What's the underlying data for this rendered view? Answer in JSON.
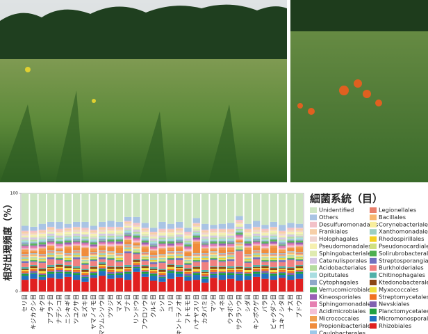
{
  "chart_data": {
    "type": "bar",
    "stacked": true,
    "y_label": "相対出現頻度（%）",
    "legend_title": "細菌系統（目）",
    "ylim": [
      0,
      100
    ],
    "yticks": [
      0,
      100
    ],
    "categories": [
      "セリ目",
      "キジカクシ目",
      "キク目",
      "アブラナ目",
      "ナデシコ目",
      "ニシキギ目",
      "ツユクサ目",
      "ミズキ目",
      "ヤマノイモ目",
      "マツムシソウ目",
      "ツツジ目",
      "マメ目",
      "ブナ目",
      "リンドウ目",
      "フウロソウ目",
      "クルミ目",
      "シソ目",
      "ユリ目",
      "キントラノオ目",
      "フトモモ目",
      "ハナヤスリ目",
      "カタバミ目",
      "マツ目",
      "イネ目",
      "ウラボシ目",
      "サクラソウ目",
      "シダ目",
      "キンポウゲ目",
      "バラ目",
      "ビャクダン目",
      "ユキノシタ目",
      "ナス目",
      "ブドウ目"
    ],
    "series": [
      {
        "name": "Unidentified",
        "color": "#cfe6c4",
        "values": [
          33,
          34,
          31,
          29,
          29,
          31,
          29,
          29,
          33,
          29,
          28,
          29,
          24,
          24,
          30,
          35,
          29,
          31,
          29,
          35,
          25,
          31,
          32,
          31,
          30,
          23,
          31,
          28,
          32,
          29,
          32,
          30,
          31
        ]
      },
      {
        "name": "Others",
        "color": "#a9c4e4",
        "values": [
          5,
          4,
          6,
          5,
          7,
          4,
          5,
          6,
          4,
          5,
          6,
          5,
          4,
          6,
          5,
          4,
          7,
          5,
          6,
          4,
          5,
          6,
          4,
          5,
          6,
          4,
          5,
          6,
          4,
          5,
          6,
          5,
          4
        ]
      },
      {
        "name": "Desulfuromonadales",
        "color": "#f3c1c8",
        "values": [
          1,
          2,
          1,
          1,
          2,
          1,
          1,
          2,
          1,
          1,
          2,
          1,
          1,
          2,
          1,
          1,
          2,
          1,
          1,
          2,
          1,
          1,
          2,
          1,
          1,
          2,
          1,
          1,
          2,
          1,
          1,
          2,
          1
        ]
      },
      {
        "name": "Frankiales",
        "color": "#f6cfa8",
        "values": [
          2,
          1,
          2,
          2,
          1,
          2,
          2,
          1,
          2,
          2,
          1,
          2,
          2,
          1,
          2,
          2,
          1,
          2,
          2,
          1,
          2,
          2,
          1,
          2,
          2,
          1,
          2,
          2,
          1,
          2,
          2,
          1,
          2
        ]
      },
      {
        "name": "Holophagales",
        "color": "#f0d4d0",
        "values": [
          2,
          1,
          1,
          2,
          1,
          1,
          2,
          1,
          1,
          2,
          1,
          1,
          2,
          1,
          1,
          2,
          1,
          1,
          2,
          1,
          1,
          2,
          1,
          1,
          2,
          1,
          1,
          2,
          1,
          1,
          2,
          1,
          1
        ]
      },
      {
        "name": "Pseudomonadales",
        "color": "#f6f0b0",
        "values": [
          1,
          2,
          2,
          1,
          2,
          2,
          1,
          2,
          2,
          1,
          2,
          2,
          1,
          2,
          2,
          1,
          2,
          2,
          1,
          2,
          2,
          1,
          2,
          2,
          1,
          2,
          2,
          1,
          2,
          2,
          1,
          2,
          2
        ]
      },
      {
        "name": "Sphingobacteriales",
        "color": "#dfeab0",
        "values": [
          1,
          1,
          2,
          1,
          1,
          2,
          1,
          1,
          2,
          1,
          1,
          2,
          1,
          1,
          2,
          1,
          1,
          2,
          1,
          1,
          2,
          1,
          1,
          2,
          1,
          1,
          2,
          1,
          1,
          2,
          1,
          1,
          2
        ]
      },
      {
        "name": "Catenulisporales",
        "color": "#d5c6e4",
        "values": [
          2,
          2,
          1,
          2,
          2,
          1,
          2,
          2,
          1,
          2,
          2,
          1,
          2,
          2,
          1,
          2,
          2,
          1,
          2,
          2,
          1,
          2,
          2,
          1,
          2,
          2,
          1,
          2,
          2,
          1,
          2,
          2,
          1
        ]
      },
      {
        "name": "Acidobacteriales",
        "color": "#b5dca0",
        "values": [
          1,
          2,
          1,
          1,
          2,
          1,
          1,
          2,
          1,
          1,
          2,
          1,
          1,
          2,
          1,
          1,
          2,
          1,
          1,
          2,
          1,
          1,
          2,
          1,
          1,
          2,
          1,
          1,
          2,
          1,
          1,
          2,
          1
        ]
      },
      {
        "name": "Opitutales",
        "color": "#a8dde0",
        "values": [
          2,
          1,
          2,
          2,
          1,
          2,
          2,
          1,
          2,
          2,
          1,
          2,
          2,
          1,
          2,
          2,
          1,
          2,
          2,
          1,
          2,
          2,
          1,
          2,
          2,
          1,
          2,
          2,
          1,
          2,
          2,
          1,
          2
        ]
      },
      {
        "name": "Cytophagales",
        "color": "#8fa8c8",
        "values": [
          2,
          1,
          1,
          2,
          1,
          1,
          2,
          1,
          1,
          2,
          1,
          1,
          2,
          1,
          1,
          2,
          1,
          1,
          2,
          1,
          1,
          2,
          1,
          1,
          2,
          1,
          1,
          2,
          1,
          1,
          2,
          1,
          1
        ]
      },
      {
        "name": "Verrucomicrobiales",
        "color": "#5cb85c",
        "values": [
          1,
          2,
          2,
          1,
          2,
          2,
          1,
          2,
          2,
          1,
          2,
          2,
          1,
          2,
          2,
          1,
          2,
          2,
          1,
          2,
          2,
          1,
          2,
          2,
          1,
          2,
          2,
          1,
          2,
          2,
          1,
          2,
          2
        ]
      },
      {
        "name": "Kineosporiales",
        "color": "#9b5fb5",
        "values": [
          1,
          1,
          2,
          1,
          1,
          2,
          1,
          1,
          2,
          1,
          1,
          2,
          1,
          1,
          2,
          1,
          1,
          2,
          1,
          1,
          2,
          1,
          1,
          2,
          1,
          1,
          2,
          1,
          1,
          2,
          1,
          1,
          2
        ]
      },
      {
        "name": "Sphingomonadales",
        "color": "#e67fb0",
        "values": [
          2,
          2,
          1,
          2,
          2,
          1,
          2,
          2,
          1,
          2,
          2,
          1,
          2,
          2,
          1,
          2,
          2,
          1,
          2,
          2,
          1,
          2,
          2,
          1,
          2,
          2,
          1,
          2,
          2,
          1,
          2,
          2,
          1
        ]
      },
      {
        "name": "Acidimicrobiales",
        "color": "#f4c0d4",
        "values": [
          1,
          2,
          1,
          1,
          2,
          1,
          1,
          2,
          1,
          1,
          2,
          1,
          1,
          2,
          1,
          1,
          2,
          1,
          1,
          2,
          1,
          1,
          2,
          1,
          1,
          2,
          1,
          1,
          2,
          1,
          1,
          2,
          1
        ]
      },
      {
        "name": "Micrococcales",
        "color": "#f0a050",
        "values": [
          2,
          1,
          2,
          2,
          1,
          2,
          2,
          1,
          2,
          2,
          1,
          2,
          2,
          1,
          2,
          2,
          1,
          2,
          2,
          1,
          2,
          2,
          1,
          2,
          2,
          1,
          2,
          2,
          1,
          2,
          2,
          1,
          2
        ]
      },
      {
        "name": "Propionibacteriales",
        "color": "#f08c3c",
        "values": [
          3,
          2,
          4,
          3,
          2,
          5,
          3,
          8,
          2,
          3,
          4,
          6,
          3,
          2,
          4,
          3,
          5,
          2,
          3,
          4,
          10,
          3,
          2,
          4,
          3,
          2,
          5,
          3,
          4,
          6,
          2,
          3,
          4
        ]
      },
      {
        "name": "Caulobacterales",
        "color": "#9cc8e8",
        "values": [
          1,
          1,
          1,
          1,
          1,
          1,
          1,
          1,
          1,
          1,
          1,
          1,
          1,
          1,
          1,
          1,
          1,
          1,
          1,
          1,
          1,
          1,
          1,
          1,
          1,
          1,
          1,
          1,
          1,
          1,
          1,
          1,
          1
        ]
      },
      {
        "name": "Legionellales",
        "color": "#e8806c",
        "values": [
          1,
          0,
          1,
          1,
          0,
          1,
          1,
          0,
          1,
          1,
          0,
          1,
          1,
          0,
          1,
          1,
          0,
          1,
          1,
          0,
          1,
          1,
          0,
          1,
          1,
          0,
          1,
          1,
          0,
          1,
          1,
          0,
          1
        ]
      },
      {
        "name": "Bacillales",
        "color": "#f8b870",
        "values": [
          1,
          2,
          1,
          1,
          2,
          1,
          1,
          2,
          1,
          1,
          2,
          1,
          1,
          2,
          1,
          1,
          2,
          1,
          1,
          2,
          1,
          1,
          2,
          1,
          1,
          2,
          1,
          1,
          2,
          1,
          1,
          2,
          1
        ]
      },
      {
        "name": "Corynebacteriales",
        "color": "#f8ee9c",
        "values": [
          0,
          1,
          1,
          0,
          1,
          1,
          0,
          1,
          1,
          0,
          1,
          1,
          0,
          1,
          1,
          0,
          1,
          1,
          0,
          1,
          1,
          0,
          1,
          1,
          0,
          1,
          1,
          0,
          1,
          1,
          0,
          1,
          1
        ]
      },
      {
        "name": "Xanthomonadales",
        "color": "#9ccfc0",
        "values": [
          2,
          1,
          1,
          2,
          1,
          1,
          2,
          1,
          1,
          2,
          1,
          1,
          2,
          1,
          1,
          2,
          1,
          1,
          2,
          1,
          1,
          2,
          1,
          1,
          2,
          1,
          1,
          2,
          1,
          1,
          2,
          1,
          1
        ]
      },
      {
        "name": "Rhodospirillales",
        "color": "#f4d020",
        "values": [
          1,
          0,
          1,
          1,
          0,
          1,
          1,
          0,
          1,
          1,
          0,
          1,
          1,
          0,
          1,
          1,
          0,
          1,
          1,
          0,
          1,
          1,
          0,
          1,
          1,
          0,
          1,
          1,
          0,
          1,
          1,
          0,
          1
        ]
      },
      {
        "name": "Pseudonocardiales",
        "color": "#d0e080",
        "values": [
          1,
          2,
          1,
          1,
          2,
          1,
          1,
          2,
          1,
          1,
          2,
          1,
          1,
          2,
          1,
          1,
          2,
          1,
          1,
          2,
          1,
          1,
          2,
          1,
          1,
          2,
          1,
          1,
          2,
          1,
          1,
          2,
          1
        ]
      },
      {
        "name": "Solirubrobacterales",
        "color": "#4caf50",
        "values": [
          0,
          1,
          1,
          0,
          1,
          1,
          0,
          1,
          1,
          0,
          1,
          1,
          0,
          1,
          1,
          0,
          1,
          1,
          0,
          1,
          1,
          0,
          1,
          1,
          0,
          1,
          1,
          0,
          1,
          1,
          0,
          1,
          1
        ]
      },
      {
        "name": "Streptosporangiales",
        "color": "#7070c0",
        "values": [
          2,
          1,
          1,
          2,
          1,
          1,
          2,
          1,
          1,
          2,
          1,
          1,
          2,
          1,
          1,
          2,
          1,
          1,
          2,
          1,
          1,
          2,
          1,
          1,
          2,
          1,
          1,
          2,
          1,
          1,
          2,
          1,
          1
        ]
      },
      {
        "name": "Burkholderiales",
        "color": "#f08080",
        "values": [
          4,
          3,
          5,
          6,
          4,
          3,
          7,
          4,
          5,
          3,
          6,
          4,
          12,
          5,
          4,
          3,
          6,
          4,
          5,
          3,
          4,
          8,
          6,
          4,
          5,
          15,
          4,
          6,
          3,
          5,
          4,
          7,
          4
        ]
      },
      {
        "name": "Chitinophagales",
        "color": "#50b0a8",
        "values": [
          2,
          1,
          1,
          2,
          1,
          1,
          2,
          1,
          1,
          2,
          1,
          1,
          2,
          1,
          1,
          2,
          1,
          1,
          2,
          1,
          1,
          2,
          1,
          1,
          2,
          1,
          1,
          2,
          1,
          1,
          2,
          1,
          1
        ]
      },
      {
        "name": "Ktedonobacterales",
        "color": "#8b4513",
        "values": [
          1,
          2,
          2,
          1,
          2,
          2,
          1,
          2,
          2,
          1,
          2,
          2,
          1,
          2,
          2,
          1,
          2,
          2,
          1,
          2,
          2,
          1,
          2,
          2,
          1,
          2,
          2,
          1,
          2,
          2,
          1,
          2,
          2
        ]
      },
      {
        "name": "Myxococcales",
        "color": "#f0e040",
        "values": [
          1,
          1,
          2,
          1,
          1,
          2,
          1,
          1,
          2,
          1,
          1,
          2,
          1,
          1,
          2,
          1,
          1,
          2,
          1,
          1,
          2,
          1,
          1,
          2,
          1,
          1,
          2,
          1,
          1,
          2,
          1,
          1,
          2
        ]
      },
      {
        "name": "Streptomycetales",
        "color": "#f07020",
        "values": [
          2,
          2,
          1,
          2,
          2,
          1,
          2,
          2,
          1,
          2,
          2,
          1,
          2,
          2,
          1,
          2,
          2,
          1,
          2,
          2,
          1,
          2,
          2,
          1,
          2,
          2,
          1,
          2,
          2,
          1,
          2,
          2,
          1
        ]
      },
      {
        "name": "Nevskiales",
        "color": "#8060b0",
        "values": [
          1,
          2,
          1,
          1,
          2,
          1,
          1,
          2,
          1,
          1,
          2,
          1,
          1,
          2,
          1,
          1,
          2,
          1,
          1,
          2,
          1,
          1,
          2,
          1,
          1,
          2,
          1,
          1,
          2,
          1,
          1,
          2,
          1
        ]
      },
      {
        "name": "Planctomycetales",
        "color": "#20a040",
        "values": [
          2,
          1,
          2,
          2,
          1,
          2,
          2,
          1,
          2,
          2,
          1,
          2,
          2,
          1,
          2,
          2,
          1,
          2,
          2,
          1,
          2,
          2,
          1,
          2,
          2,
          1,
          2,
          2,
          1,
          2,
          2,
          1,
          2
        ]
      },
      {
        "name": "Micromonosporales",
        "color": "#2070c0",
        "values": [
          4,
          5,
          3,
          4,
          6,
          3,
          5,
          4,
          3,
          5,
          4,
          3,
          6,
          4,
          3,
          5,
          4,
          6,
          3,
          4,
          5,
          4,
          3,
          5,
          4,
          6,
          4,
          3,
          5,
          4,
          3,
          4,
          5
        ]
      },
      {
        "name": "Rhizobiales",
        "color": "#e02020",
        "values": [
          12,
          13,
          12,
          14,
          13,
          15,
          12,
          10,
          14,
          16,
          13,
          14,
          12,
          20,
          15,
          11,
          10,
          13,
          15,
          11,
          12,
          9,
          14,
          12,
          13,
          11,
          12,
          15,
          13,
          12,
          14,
          12,
          13
        ]
      }
    ]
  }
}
